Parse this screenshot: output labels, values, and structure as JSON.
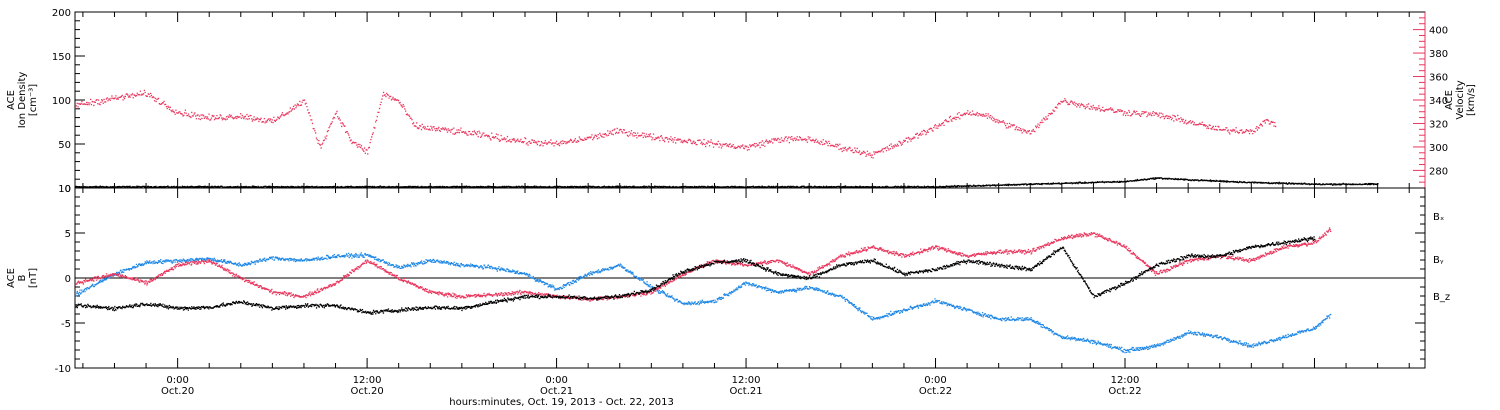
{
  "colors": {
    "black": "#000000",
    "pink": "#e8365d",
    "blue": "#1f88e5"
  },
  "chart_data": [
    {
      "type": "scatter",
      "panel": "top",
      "x_domain_hours": [
        -6.5,
        79.0
      ],
      "left_axis": {
        "label_lines": [
          "ACE",
          "Ion Density",
          "[cm⁻³]"
        ],
        "ylim": [
          0,
          200
        ],
        "ticks": [
          {
            "v": 0,
            "t": "0"
          },
          {
            "v": 50,
            "t": "50"
          },
          {
            "v": 100,
            "t": "100"
          },
          {
            "v": 150,
            "t": "150"
          },
          {
            "v": 200,
            "t": "200"
          }
        ]
      },
      "right_axis": {
        "label_lines": [
          "ACE",
          "Velocity",
          "[km/s]"
        ],
        "ylim": [
          265,
          415
        ],
        "ticks": [
          {
            "v": 280,
            "t": "280"
          },
          {
            "v": 300,
            "t": "300"
          },
          {
            "v": 320,
            "t": "320"
          },
          {
            "v": 340,
            "t": "340"
          },
          {
            "v": 360,
            "t": "360"
          },
          {
            "v": 380,
            "t": "380"
          },
          {
            "v": 400,
            "t": "400"
          }
        ]
      },
      "series": [
        {
          "key": "density",
          "axis": "left",
          "color": "#000000",
          "points": [
            [
              -6.5,
              2
            ],
            [
              0,
              2
            ],
            [
              12,
              2
            ],
            [
              24,
              2
            ],
            [
              36,
              2
            ],
            [
              48,
              2
            ],
            [
              52,
              4
            ],
            [
              56,
              6
            ],
            [
              60,
              8
            ],
            [
              62,
              12
            ],
            [
              64,
              10
            ],
            [
              68,
              7
            ],
            [
              72,
              5
            ],
            [
              76,
              5
            ]
          ]
        },
        {
          "key": "velocity",
          "axis": "right",
          "color": "#e8365d",
          "points": [
            [
              -6.5,
              336
            ],
            [
              -4,
              342
            ],
            [
              -2,
              346
            ],
            [
              0,
              330
            ],
            [
              2,
              325
            ],
            [
              4,
              327
            ],
            [
              6,
              322
            ],
            [
              8,
              340
            ],
            [
              9,
              300
            ],
            [
              10,
              330
            ],
            [
              11,
              305
            ],
            [
              12,
              296
            ],
            [
              13,
              346
            ],
            [
              14,
              339
            ],
            [
              15,
              318
            ],
            [
              18,
              313
            ],
            [
              22,
              305
            ],
            [
              24,
              303
            ],
            [
              26,
              308
            ],
            [
              28,
              314
            ],
            [
              30,
              309
            ],
            [
              34,
              303
            ],
            [
              36,
              300
            ],
            [
              38,
              307
            ],
            [
              40,
              307
            ],
            [
              42,
              300
            ],
            [
              44,
              294
            ],
            [
              46,
              305
            ],
            [
              48,
              318
            ],
            [
              50,
              330
            ],
            [
              51,
              328
            ],
            [
              52,
              322
            ],
            [
              54,
              312
            ],
            [
              56,
              340
            ],
            [
              58,
              334
            ],
            [
              60,
              330
            ],
            [
              62,
              328
            ],
            [
              64,
              322
            ],
            [
              66,
              315
            ],
            [
              68,
              314
            ],
            [
              69,
              323
            ],
            [
              69.5,
              320
            ]
          ]
        }
      ]
    },
    {
      "type": "scatter",
      "panel": "bottom",
      "x_domain_hours": [
        -6.5,
        79.0
      ],
      "left_axis": {
        "label_lines": [
          "ACE",
          "B",
          "[nT]"
        ],
        "ylim": [
          -10,
          10
        ],
        "ticks": [
          {
            "v": -10,
            "t": "-10"
          },
          {
            "v": -5,
            "t": "-5"
          },
          {
            "v": 0,
            "t": "0"
          },
          {
            "v": 5,
            "t": "5"
          },
          {
            "v": 10,
            "t": "10"
          }
        ]
      },
      "legend": [
        {
          "text": "Bₓ",
          "color": "#000000"
        },
        {
          "text": "Bᵧ",
          "color": "#1f88e5"
        },
        {
          "text": "B_z",
          "color": "#e8365d"
        }
      ],
      "series": [
        {
          "key": "bx",
          "color": "#000000",
          "points": [
            [
              -6.5,
              -3
            ],
            [
              -4,
              -3.3
            ],
            [
              -2,
              -2.8
            ],
            [
              0,
              -3.3
            ],
            [
              2,
              -3.2
            ],
            [
              4,
              -2.6
            ],
            [
              6,
              -3.3
            ],
            [
              8,
              -3.0
            ],
            [
              10,
              -3.0
            ],
            [
              12,
              -3.8
            ],
            [
              14,
              -3.5
            ],
            [
              16,
              -3.2
            ],
            [
              18,
              -3.3
            ],
            [
              20,
              -2.6
            ],
            [
              22,
              -2.0
            ],
            [
              24,
              -2.0
            ],
            [
              26,
              -2.2
            ],
            [
              28,
              -2.0
            ],
            [
              30,
              -1.2
            ],
            [
              32,
              0.8
            ],
            [
              34,
              1.8
            ],
            [
              36,
              2.0
            ],
            [
              38,
              0.5
            ],
            [
              40,
              0
            ],
            [
              42,
              1.5
            ],
            [
              44,
              2.0
            ],
            [
              46,
              0.5
            ],
            [
              48,
              1.0
            ],
            [
              50,
              2.0
            ],
            [
              52,
              1.5
            ],
            [
              54,
              1.0
            ],
            [
              56,
              3.5
            ],
            [
              58,
              -2.0
            ],
            [
              60,
              -0.5
            ],
            [
              62,
              1.5
            ],
            [
              64,
              2.5
            ],
            [
              66,
              2.5
            ],
            [
              68,
              3.5
            ],
            [
              70,
              4.0
            ],
            [
              72,
              4.5
            ]
          ]
        },
        {
          "key": "by",
          "color": "#1f88e5",
          "points": [
            [
              -6.5,
              -1.8
            ],
            [
              -4,
              0.5
            ],
            [
              -2,
              1.8
            ],
            [
              0,
              2.0
            ],
            [
              2,
              2.2
            ],
            [
              4,
              1.5
            ],
            [
              6,
              2.3
            ],
            [
              8,
              2.0
            ],
            [
              10,
              2.5
            ],
            [
              12,
              2.6
            ],
            [
              14,
              1.2
            ],
            [
              16,
              2.0
            ],
            [
              18,
              1.5
            ],
            [
              20,
              1.2
            ],
            [
              22,
              0.5
            ],
            [
              24,
              -1.2
            ],
            [
              26,
              0.5
            ],
            [
              28,
              1.5
            ],
            [
              30,
              -1.0
            ],
            [
              32,
              -2.8
            ],
            [
              34,
              -2.5
            ],
            [
              36,
              -0.5
            ],
            [
              38,
              -1.5
            ],
            [
              40,
              -1.0
            ],
            [
              42,
              -2.0
            ],
            [
              44,
              -4.5
            ],
            [
              46,
              -3.5
            ],
            [
              48,
              -2.5
            ],
            [
              50,
              -3.5
            ],
            [
              52,
              -4.5
            ],
            [
              54,
              -4.5
            ],
            [
              56,
              -6.5
            ],
            [
              58,
              -7.0
            ],
            [
              60,
              -8.0
            ],
            [
              62,
              -7.5
            ],
            [
              64,
              -6.0
            ],
            [
              66,
              -6.5
            ],
            [
              68,
              -7.5
            ],
            [
              70,
              -6.5
            ],
            [
              72,
              -5.5
            ],
            [
              73,
              -4.0
            ]
          ]
        },
        {
          "key": "bz",
          "color": "#e8365d",
          "points": [
            [
              -6.5,
              -0.5
            ],
            [
              -4,
              0.5
            ],
            [
              -2,
              -0.5
            ],
            [
              0,
              1.5
            ],
            [
              2,
              2.0
            ],
            [
              4,
              0.0
            ],
            [
              6,
              -1.5
            ],
            [
              8,
              -2.0
            ],
            [
              10,
              -0.5
            ],
            [
              12,
              2.0
            ],
            [
              14,
              0
            ],
            [
              16,
              -1.5
            ],
            [
              18,
              -2.0
            ],
            [
              20,
              -1.8
            ],
            [
              22,
              -1.5
            ],
            [
              24,
              -2.0
            ],
            [
              26,
              -2.3
            ],
            [
              28,
              -2.0
            ],
            [
              30,
              -1.5
            ],
            [
              32,
              0.5
            ],
            [
              34,
              2.0
            ],
            [
              36,
              1.5
            ],
            [
              38,
              2.0
            ],
            [
              40,
              0.5
            ],
            [
              42,
              2.5
            ],
            [
              44,
              3.5
            ],
            [
              46,
              2.5
            ],
            [
              48,
              3.5
            ],
            [
              50,
              2.5
            ],
            [
              52,
              3.0
            ],
            [
              54,
              3.0
            ],
            [
              56,
              4.5
            ],
            [
              58,
              5.0
            ],
            [
              60,
              3.5
            ],
            [
              62,
              0.5
            ],
            [
              64,
              2.0
            ],
            [
              66,
              2.5
            ],
            [
              68,
              2.0
            ],
            [
              70,
              3.5
            ],
            [
              72,
              4.0
            ],
            [
              73,
              5.5
            ]
          ]
        }
      ]
    }
  ],
  "time_axis": {
    "ticks": [
      {
        "h": 0,
        "time": "0:00",
        "date": "Oct.20"
      },
      {
        "h": 12,
        "time": "12:00",
        "date": "Oct.20"
      },
      {
        "h": 24,
        "time": "0:00",
        "date": "Oct.21"
      },
      {
        "h": 36,
        "time": "12:00",
        "date": "Oct.21"
      },
      {
        "h": 48,
        "time": "0:00",
        "date": "Oct.22"
      },
      {
        "h": 60,
        "time": "12:00",
        "date": "Oct.22"
      }
    ],
    "label": "hours:minutes, Oct. 19, 2013 - Oct. 22, 2013"
  }
}
